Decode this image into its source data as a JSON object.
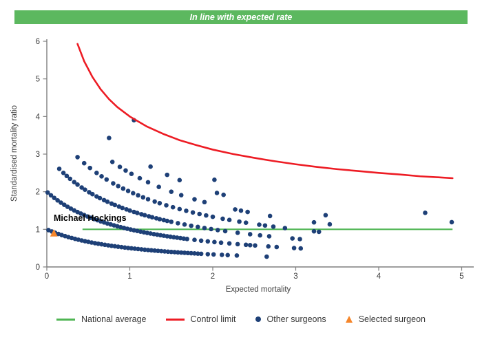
{
  "banner": {
    "text": "In line with expected rate",
    "background_color": "#5cb85f",
    "text_color": "#ffffff"
  },
  "chart_data": {
    "type": "scatter",
    "title": "In line with expected rate",
    "xlabel": "Expected mortality",
    "ylabel": "Standardised mortality ratio",
    "xlim": [
      0,
      5
    ],
    "ylim": [
      0,
      6
    ],
    "x_ticks": [
      0,
      1,
      2,
      3,
      4,
      5
    ],
    "y_ticks": [
      0,
      1,
      2,
      3,
      4,
      5,
      6
    ],
    "grid": false,
    "axis_color": "#7f7f7f",
    "tick_text_color": "#3d3d3d",
    "national_average": {
      "label": "National average",
      "y": 1,
      "x_start": 0.43,
      "x_end": 4.89,
      "color": "#4fb553"
    },
    "control_limit": {
      "label": "Control limit",
      "color": "#ed1c24",
      "points": [
        [
          0.37,
          5.93
        ],
        [
          0.45,
          5.47
        ],
        [
          0.55,
          5.05
        ],
        [
          0.65,
          4.72
        ],
        [
          0.75,
          4.46
        ],
        [
          0.85,
          4.25
        ],
        [
          1.0,
          4.0
        ],
        [
          1.2,
          3.74
        ],
        [
          1.4,
          3.54
        ],
        [
          1.6,
          3.37
        ],
        [
          1.8,
          3.24
        ],
        [
          2.0,
          3.12
        ],
        [
          2.25,
          3.0
        ],
        [
          2.5,
          2.9
        ],
        [
          2.75,
          2.81
        ],
        [
          3.0,
          2.73
        ],
        [
          3.25,
          2.66
        ],
        [
          3.5,
          2.6
        ],
        [
          3.75,
          2.55
        ],
        [
          4.0,
          2.5
        ],
        [
          4.25,
          2.46
        ],
        [
          4.5,
          2.41
        ],
        [
          4.75,
          2.38
        ],
        [
          4.89,
          2.36
        ]
      ]
    },
    "other_surgeons": {
      "label": "Other surgeons",
      "color": "#1e4077",
      "marker_radius": 3.3,
      "band_model": "smr = k / (expected + 1)",
      "bands": [
        {
          "k": 1,
          "x": [
            0.02,
            0.06,
            0.1,
            0.14,
            0.18,
            0.22,
            0.26,
            0.3,
            0.34,
            0.38,
            0.42,
            0.46,
            0.5,
            0.54,
            0.58,
            0.62,
            0.66,
            0.7,
            0.74,
            0.78,
            0.82,
            0.86,
            0.9,
            0.94,
            0.98,
            1.02,
            1.06,
            1.1,
            1.14,
            1.18,
            1.22,
            1.26,
            1.3,
            1.34,
            1.38,
            1.42,
            1.46,
            1.5,
            1.54,
            1.58,
            1.62,
            1.66,
            1.7,
            1.74,
            1.78,
            1.82,
            1.86,
            1.94,
            2.01,
            2.11,
            2.18,
            2.29,
            2.65
          ]
        },
        {
          "k": 2,
          "x": [
            0.01,
            0.05,
            0.09,
            0.13,
            0.17,
            0.21,
            0.25,
            0.29,
            0.33,
            0.37,
            0.41,
            0.45,
            0.49,
            0.53,
            0.57,
            0.61,
            0.65,
            0.69,
            0.73,
            0.77,
            0.81,
            0.85,
            0.89,
            0.93,
            0.97,
            1.01,
            1.05,
            1.09,
            1.13,
            1.17,
            1.21,
            1.25,
            1.29,
            1.33,
            1.37,
            1.41,
            1.45,
            1.49,
            1.53,
            1.57,
            1.61,
            1.65,
            1.69,
            1.78,
            1.86,
            1.94,
            2.02,
            2.1,
            2.2,
            2.3,
            2.4,
            2.45,
            2.51,
            2.67,
            2.77,
            2.98,
            3.06
          ]
        },
        {
          "k": 3,
          "x": [
            0.15,
            0.2,
            0.24,
            0.28,
            0.33,
            0.37,
            0.42,
            0.46,
            0.51,
            0.55,
            0.6,
            0.64,
            0.69,
            0.73,
            0.78,
            0.82,
            0.87,
            0.91,
            0.96,
            1.0,
            1.05,
            1.09,
            1.14,
            1.18,
            1.23,
            1.27,
            1.32,
            1.36,
            1.41,
            1.45,
            1.5,
            1.58,
            1.66,
            1.74,
            1.82,
            1.9,
            1.98,
            2.06,
            2.15,
            2.3,
            2.45,
            2.57,
            2.68,
            2.96,
            3.05
          ]
        },
        {
          "k": 4,
          "x": [
            0.37,
            0.45,
            0.52,
            0.6,
            0.66,
            0.72,
            0.8,
            0.86,
            0.92,
            0.98,
            1.04,
            1.1,
            1.16,
            1.22,
            1.3,
            1.36,
            1.44,
            1.52,
            1.6,
            1.68,
            1.76,
            1.84,
            1.92,
            2.0,
            2.12,
            2.2,
            2.32,
            2.4,
            2.56,
            2.63,
            2.73,
            2.87,
            3.22,
            3.28
          ]
        },
        {
          "k": 5,
          "x": [
            0.79,
            0.88,
            0.95,
            1.02,
            1.12,
            1.22,
            1.35,
            1.5,
            1.62,
            1.78,
            1.9,
            2.27,
            2.34,
            2.42,
            2.69,
            3.22,
            3.41
          ]
        },
        {
          "k": 6,
          "x": [
            0.75,
            1.25,
            1.45,
            1.6,
            2.05,
            2.13,
            3.36
          ]
        },
        {
          "k": 7,
          "x": [
            2.02,
            4.88
          ]
        },
        {
          "k": 8,
          "x": [
            1.05,
            4.56
          ]
        }
      ]
    },
    "selected_surgeon": {
      "label": "Selected surgeon",
      "name": "Michael Hockings",
      "color": "#f5862b",
      "x": 0.085,
      "y": 0.9
    }
  },
  "legend": {
    "items": [
      {
        "label": "National average",
        "marker": "line",
        "color": "#4fb553"
      },
      {
        "label": "Control limit",
        "marker": "line",
        "color": "#ed1c24"
      },
      {
        "label": "Other surgeons",
        "marker": "dot",
        "color": "#1e4077"
      },
      {
        "label": "Selected surgeon",
        "marker": "triangle",
        "color": "#f5862b"
      }
    ]
  }
}
